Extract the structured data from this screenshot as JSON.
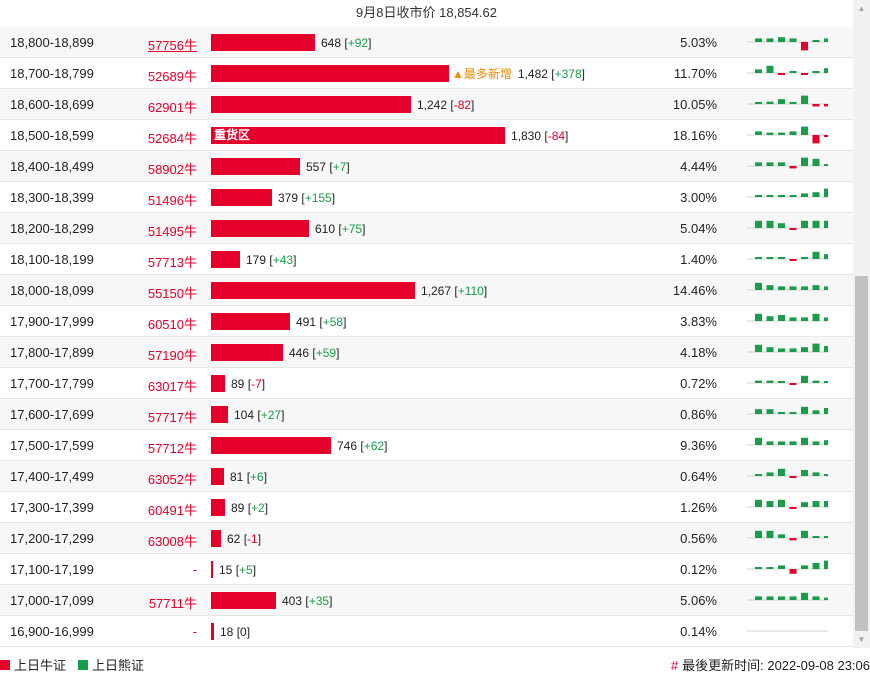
{
  "header": {
    "title": "9月8日收市价 18,854.62"
  },
  "colors": {
    "bull": "#e4002b",
    "bear": "#1a9c4a",
    "annotation": "#f08c00"
  },
  "rows": [
    {
      "range": "18,800-18,899",
      "code": "57756牛",
      "link": true,
      "count": 648,
      "count_text": "648",
      "delta_text": "+92",
      "delta_sign": "pos",
      "pct": "5.03%",
      "label": "",
      "spark": [
        0.3,
        0.3,
        0.4,
        0.3,
        -0.7,
        0.1,
        0.3
      ]
    },
    {
      "range": "18,700-18,799",
      "code": "52689牛",
      "link": false,
      "count": 1482,
      "count_text": "1,482",
      "delta_text": "+378",
      "delta_sign": "pos",
      "pct": "11.70%",
      "label": "▲最多新增",
      "spark": [
        0.3,
        0.6,
        -0.1,
        0.1,
        -0.1,
        0.1,
        0.4
      ]
    },
    {
      "range": "18,600-18,699",
      "code": "62901牛",
      "link": false,
      "count": 1242,
      "count_text": "1,242",
      "delta_text": "-82",
      "delta_sign": "neg",
      "pct": "10.05%",
      "label": "",
      "spark": [
        0.1,
        0.2,
        0.4,
        0.1,
        0.7,
        -0.2,
        -0.2
      ]
    },
    {
      "range": "18,500-18,599",
      "code": "52684牛",
      "link": false,
      "count": 1830,
      "count_text": "1,830",
      "delta_text": "-84",
      "delta_sign": "neg",
      "pct": "18.16%",
      "label": "",
      "bar_label": "重货区",
      "spark": [
        0.3,
        0.2,
        0.2,
        0.3,
        0.7,
        -0.7,
        -0.1
      ]
    },
    {
      "range": "18,400-18,499",
      "code": "58902牛",
      "link": false,
      "count": 557,
      "count_text": "557",
      "delta_text": "+7",
      "delta_sign": "pos",
      "pct": "4.44%",
      "label": "",
      "spark": [
        0.3,
        0.3,
        0.3,
        -0.2,
        0.7,
        0.6,
        0.1
      ]
    },
    {
      "range": "18,300-18,399",
      "code": "51496牛",
      "link": false,
      "count": 379,
      "count_text": "379",
      "delta_text": "+155",
      "delta_sign": "pos",
      "pct": "3.00%",
      "label": "",
      "spark": [
        0.1,
        0.1,
        0.1,
        0.1,
        0.3,
        0.4,
        0.7
      ]
    },
    {
      "range": "18,200-18,299",
      "code": "51495牛",
      "link": false,
      "count": 610,
      "count_text": "610",
      "delta_text": "+75",
      "delta_sign": "pos",
      "pct": "5.04%",
      "label": "",
      "spark": [
        0.6,
        0.6,
        0.4,
        -0.1,
        0.6,
        0.6,
        0.6
      ]
    },
    {
      "range": "18,100-18,199",
      "code": "57713牛",
      "link": false,
      "count": 179,
      "count_text": "179",
      "delta_text": "+43",
      "delta_sign": "pos",
      "pct": "1.40%",
      "label": "",
      "spark": [
        0.1,
        0.1,
        0.1,
        -0.1,
        0.1,
        0.6,
        0.4
      ]
    },
    {
      "range": "18,000-18,099",
      "code": "55150牛",
      "link": false,
      "count": 1267,
      "count_text": "1,267",
      "delta_text": "+110",
      "delta_sign": "pos",
      "pct": "14.46%",
      "label": "",
      "spark": [
        0.6,
        0.4,
        0.3,
        0.3,
        0.3,
        0.4,
        0.3
      ]
    },
    {
      "range": "17,900-17,999",
      "code": "60510牛",
      "link": false,
      "count": 491,
      "count_text": "491",
      "delta_text": "+58",
      "delta_sign": "pos",
      "pct": "3.83%",
      "label": "",
      "spark": [
        0.6,
        0.4,
        0.5,
        0.3,
        0.3,
        0.6,
        0.3
      ]
    },
    {
      "range": "17,800-17,899",
      "code": "57190牛",
      "link": false,
      "count": 446,
      "count_text": "446",
      "delta_text": "+59",
      "delta_sign": "pos",
      "pct": "4.18%",
      "label": "",
      "spark": [
        0.6,
        0.4,
        0.3,
        0.3,
        0.4,
        0.7,
        0.5
      ]
    },
    {
      "range": "17,700-17,799",
      "code": "63017牛",
      "link": false,
      "count": 89,
      "count_text": "89",
      "delta_text": "-7",
      "delta_sign": "neg",
      "pct": "0.72%",
      "label": "",
      "spark": [
        0.2,
        0.2,
        0.1,
        -0.1,
        0.6,
        0.2,
        0.1
      ]
    },
    {
      "range": "17,600-17,699",
      "code": "57717牛",
      "link": false,
      "count": 104,
      "count_text": "104",
      "delta_text": "+27",
      "delta_sign": "pos",
      "pct": "0.86%",
      "label": "",
      "spark": [
        0.4,
        0.4,
        0.1,
        0.1,
        0.6,
        0.3,
        0.5
      ]
    },
    {
      "range": "17,500-17,599",
      "code": "57712牛",
      "link": false,
      "count": 746,
      "count_text": "746",
      "delta_text": "+62",
      "delta_sign": "pos",
      "pct": "9.36%",
      "label": "",
      "spark": [
        0.6,
        0.3,
        0.3,
        0.3,
        0.6,
        0.3,
        0.4
      ]
    },
    {
      "range": "17,400-17,499",
      "code": "63052牛",
      "link": false,
      "count": 81,
      "count_text": "81",
      "delta_text": "+6",
      "delta_sign": "pos",
      "pct": "0.64%",
      "label": "",
      "spark": [
        0.1,
        0.3,
        0.6,
        -0.1,
        0.5,
        0.3,
        0.1
      ]
    },
    {
      "range": "17,300-17,399",
      "code": "60491牛",
      "link": false,
      "count": 89,
      "count_text": "89",
      "delta_text": "+2",
      "delta_sign": "pos",
      "pct": "1.26%",
      "label": "",
      "spark": [
        0.6,
        0.5,
        0.6,
        -0.1,
        0.4,
        0.5,
        0.5
      ]
    },
    {
      "range": "17,200-17,299",
      "code": "63008牛",
      "link": false,
      "count": 62,
      "count_text": "62",
      "delta_text": "-1",
      "delta_sign": "neg",
      "pct": "0.56%",
      "label": "",
      "spark": [
        0.6,
        0.6,
        0.3,
        -0.2,
        0.6,
        0.1,
        0.1
      ]
    },
    {
      "range": "17,100-17,199",
      "code": "-",
      "link": false,
      "count": 15,
      "count_text": "15",
      "delta_text": "+5",
      "delta_sign": "pos",
      "pct": "0.12%",
      "label": "",
      "spark": [
        0.1,
        0.1,
        0.3,
        -0.4,
        0.3,
        0.5,
        0.7
      ]
    },
    {
      "range": "17,000-17,099",
      "code": "57711牛",
      "link": false,
      "count": 403,
      "count_text": "403",
      "delta_text": "+35",
      "delta_sign": "pos",
      "pct": "5.06%",
      "label": "",
      "spark": [
        0.3,
        0.3,
        0.3,
        0.3,
        0.6,
        0.3,
        0.2
      ]
    },
    {
      "range": "16,900-16,999",
      "code": "-",
      "link": false,
      "count": 18,
      "count_text": "18",
      "delta_text": "0",
      "delta_sign": "neu",
      "pct": "0.14%",
      "label": "",
      "spark": [
        0,
        0,
        0,
        0,
        0,
        0,
        0
      ]
    }
  ],
  "footer": {
    "legend": [
      {
        "label": "上日牛证",
        "color": "#e4002b"
      },
      {
        "label": "上日熊证",
        "color": "#1a9c4a"
      }
    ],
    "hash": "#",
    "updated": "最後更新时间: 2022-09-08 23:06"
  }
}
